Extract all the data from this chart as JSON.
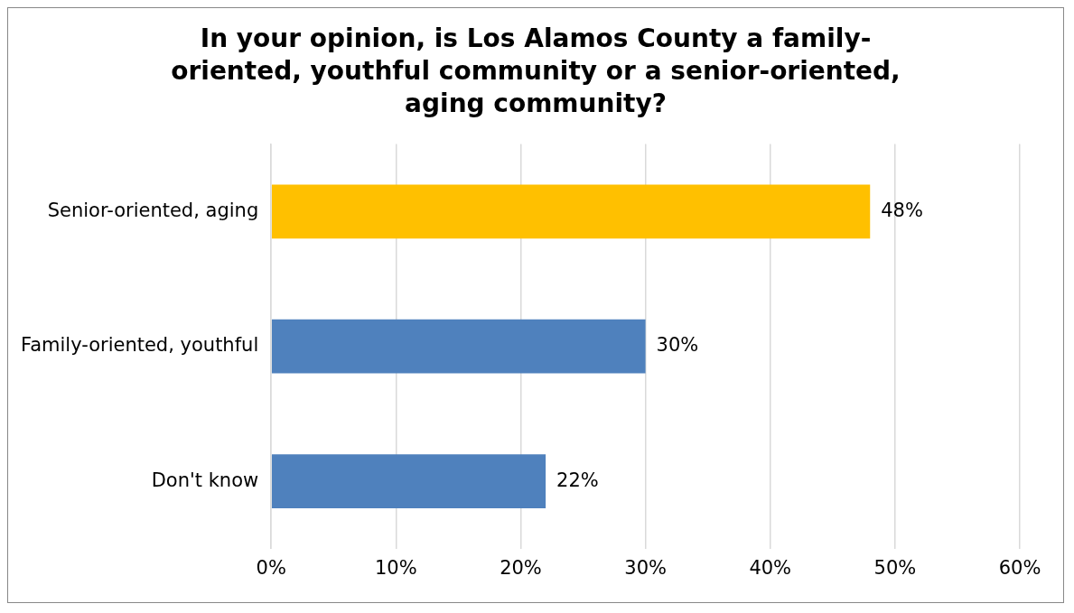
{
  "chart_data": {
    "type": "bar",
    "orientation": "horizontal",
    "title": "In your opinion, is Los Alamos County a family-oriented, youthful community or a senior-oriented, aging community?",
    "categories": [
      "Senior-oriented, aging",
      "Family-oriented, youthful",
      "Don't know"
    ],
    "values": [
      48,
      30,
      22
    ],
    "colors": [
      "#ffc000",
      "#4f81bd",
      "#4f81bd"
    ],
    "value_labels": [
      "48%",
      "30%",
      "22%"
    ],
    "xlim": [
      0,
      60
    ],
    "xticks": [
      {
        "value": 0,
        "label": "0%"
      },
      {
        "value": 10,
        "label": "10%"
      },
      {
        "value": 20,
        "label": "20%"
      },
      {
        "value": 30,
        "label": "30%"
      },
      {
        "value": 40,
        "label": "40%"
      },
      {
        "value": 50,
        "label": "50%"
      },
      {
        "value": 60,
        "label": "60%"
      }
    ],
    "grid": "x",
    "legend": false
  }
}
